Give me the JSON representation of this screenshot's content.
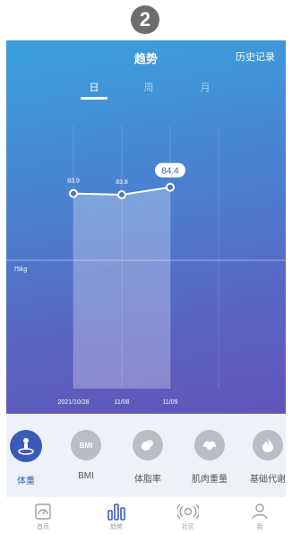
{
  "step_badge": "2",
  "header": {
    "title": "趋势",
    "history_label": "历史记录"
  },
  "period_tabs": [
    {
      "label": "日",
      "active": true
    },
    {
      "label": "周",
      "active": false
    },
    {
      "label": "月",
      "active": false
    }
  ],
  "chart_data": {
    "type": "line",
    "x": [
      "2021/10/28",
      "11/08",
      "11/09"
    ],
    "series": [
      {
        "values": [
          83.9,
          83.8,
          84.4
        ]
      }
    ],
    "data_labels": [
      "83.9",
      "83.8",
      "84.4"
    ],
    "reference_line": {
      "label": "75kg",
      "value": 75
    },
    "highlight_last": true
  },
  "metrics": [
    {
      "label": "体重",
      "icon": "weight-icon",
      "active": true
    },
    {
      "label": "BMI",
      "icon": "bmi-icon",
      "icon_text": "BMI",
      "active": false
    },
    {
      "label": "体脂率",
      "icon": "body-fat-icon",
      "active": false
    },
    {
      "label": "肌肉重量",
      "icon": "muscle-icon",
      "active": false
    },
    {
      "label": "基础代谢",
      "icon": "metabolism-flame-icon",
      "active": false
    }
  ],
  "tabbar": [
    {
      "label": "首页",
      "icon": "home-icon",
      "active": false
    },
    {
      "label": "趋势",
      "icon": "trend-bars-icon",
      "active": true
    },
    {
      "label": "社区",
      "icon": "community-signal-icon",
      "active": false
    },
    {
      "label": "我",
      "icon": "profile-icon",
      "active": false
    }
  ],
  "colors": {
    "accent": "#3a5ab8",
    "inactive": "#b9bec6"
  }
}
